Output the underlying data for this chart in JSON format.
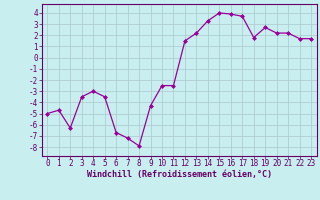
{
  "x": [
    0,
    1,
    2,
    3,
    4,
    5,
    6,
    7,
    8,
    9,
    10,
    11,
    12,
    13,
    14,
    15,
    16,
    17,
    18,
    19,
    20,
    21,
    22,
    23
  ],
  "y": [
    -5.0,
    -4.7,
    -6.3,
    -3.5,
    -3.0,
    -3.5,
    -6.7,
    -7.2,
    -7.9,
    -4.3,
    -2.5,
    -2.5,
    1.5,
    2.2,
    3.3,
    4.0,
    3.9,
    3.7,
    1.8,
    2.7,
    2.2,
    2.2,
    1.7,
    1.7
  ],
  "line_color": "#990099",
  "marker": "D",
  "marker_size": 2.0,
  "line_width": 0.9,
  "bg_color": "#c8eef0",
  "grid_color": "#aac8cc",
  "xlabel": "Windchill (Refroidissement éolien,°C)",
  "xlabel_fontsize": 6.0,
  "xtick_labels": [
    "0",
    "1",
    "2",
    "3",
    "4",
    "5",
    "6",
    "7",
    "8",
    "9",
    "10",
    "11",
    "12",
    "13",
    "14",
    "15",
    "16",
    "17",
    "18",
    "19",
    "20",
    "21",
    "22",
    "23"
  ],
  "ytick_min": -8,
  "ytick_max": 4,
  "ytick_step": 1,
  "ylim": [
    -8.8,
    4.8
  ],
  "xlim": [
    -0.5,
    23.5
  ],
  "tick_fontsize": 5.5,
  "spine_color": "#660066",
  "label_color": "#660066"
}
